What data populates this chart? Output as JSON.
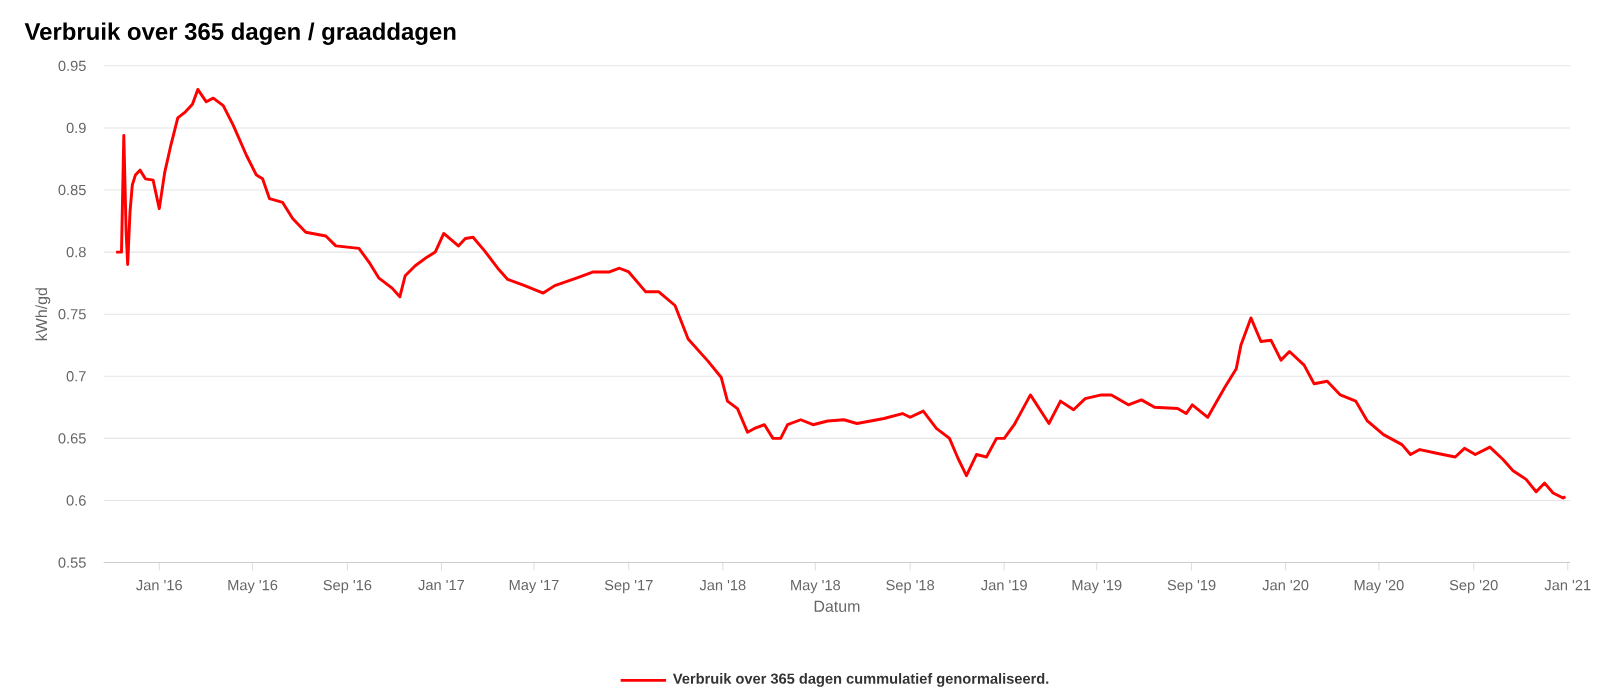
{
  "chart_data": {
    "type": "line",
    "title": "Verbruik over 365 dagen / graaddagen",
    "xlabel": "Datum",
    "ylabel": "kWh/gd",
    "x": [
      "2015-11-06",
      "2015-11-13",
      "2015-11-16",
      "2015-11-19",
      "2015-11-21",
      "2015-11-24",
      "2015-11-27",
      "2015-12-01",
      "2015-12-07",
      "2015-12-14",
      "2015-12-24",
      "2016-01-01",
      "2016-01-08",
      "2016-01-16",
      "2016-01-25",
      "2016-02-04",
      "2016-02-13",
      "2016-02-20",
      "2016-03-02",
      "2016-03-11",
      "2016-03-24",
      "2016-04-06",
      "2016-04-23",
      "2016-05-06",
      "2016-05-14",
      "2016-05-23",
      "2016-06-09",
      "2016-06-22",
      "2016-07-09",
      "2016-08-04",
      "2016-08-17",
      "2016-09-16",
      "2016-09-29",
      "2016-10-12",
      "2016-10-29",
      "2016-11-08",
      "2016-11-15",
      "2016-11-28",
      "2016-12-11",
      "2016-12-24",
      "2017-01-04",
      "2017-01-23",
      "2017-02-01",
      "2017-02-11",
      "2017-02-26",
      "2017-03-15",
      "2017-03-28",
      "2017-04-19",
      "2017-05-13",
      "2017-05-28",
      "2017-06-25",
      "2017-07-17",
      "2017-08-07",
      "2017-08-20",
      "2017-09-01",
      "2017-09-23",
      "2017-10-10",
      "2017-10-31",
      "2017-11-17",
      "2017-12-13",
      "2017-12-30",
      "2018-01-07",
      "2018-01-20",
      "2018-02-02",
      "2018-02-11",
      "2018-02-24",
      "2018-03-07",
      "2018-03-17",
      "2018-03-26",
      "2018-04-12",
      "2018-04-28",
      "2018-05-17",
      "2018-06-07",
      "2018-06-24",
      "2018-07-29",
      "2018-08-22",
      "2018-09-01",
      "2018-09-18",
      "2018-10-05",
      "2018-10-22",
      "2018-11-02",
      "2018-11-13",
      "2018-11-26",
      "2018-12-09",
      "2018-12-22",
      "2019-01-01",
      "2019-01-14",
      "2019-02-04",
      "2019-02-28",
      "2019-03-15",
      "2019-04-01",
      "2019-04-16",
      "2019-05-07",
      "2019-05-20",
      "2019-06-11",
      "2019-06-28",
      "2019-07-15",
      "2019-08-14",
      "2019-08-25",
      "2019-09-02",
      "2019-09-22",
      "2019-10-14",
      "2019-10-29",
      "2019-11-04",
      "2019-11-17",
      "2019-11-30",
      "2019-12-13",
      "2019-12-26",
      "2020-01-06",
      "2020-01-25",
      "2020-02-07",
      "2020-02-24",
      "2020-03-12",
      "2020-04-01",
      "2020-04-16",
      "2020-05-07",
      "2020-05-31",
      "2020-06-11",
      "2020-06-23",
      "2020-07-15",
      "2020-08-08",
      "2020-08-20",
      "2020-09-03",
      "2020-09-22",
      "2020-10-09",
      "2020-10-22",
      "2020-11-08",
      "2020-11-21",
      "2020-12-02",
      "2020-12-13",
      "2020-12-26",
      "2020-12-29"
    ],
    "series": [
      {
        "name": "Verbruik over 365 dagen cummulatief genormaliseerd.",
        "color": "#ff0000",
        "values": [
          0.8,
          0.8,
          0.894,
          0.816,
          0.79,
          0.832,
          0.854,
          0.862,
          0.866,
          0.859,
          0.858,
          0.835,
          0.864,
          0.886,
          0.908,
          0.913,
          0.919,
          0.931,
          0.921,
          0.924,
          0.918,
          0.902,
          0.878,
          0.862,
          0.859,
          0.843,
          0.84,
          0.827,
          0.816,
          0.813,
          0.805,
          0.803,
          0.792,
          0.779,
          0.771,
          0.764,
          0.781,
          0.789,
          0.795,
          0.8,
          0.815,
          0.805,
          0.811,
          0.812,
          0.801,
          0.787,
          0.778,
          0.773,
          0.767,
          0.773,
          0.779,
          0.784,
          0.784,
          0.787,
          0.784,
          0.768,
          0.768,
          0.757,
          0.73,
          0.712,
          0.699,
          0.68,
          0.674,
          0.655,
          0.658,
          0.661,
          0.65,
          0.65,
          0.661,
          0.665,
          0.661,
          0.664,
          0.665,
          0.662,
          0.666,
          0.67,
          0.667,
          0.672,
          0.658,
          0.65,
          0.634,
          0.62,
          0.637,
          0.635,
          0.65,
          0.65,
          0.661,
          0.685,
          0.662,
          0.68,
          0.673,
          0.682,
          0.685,
          0.685,
          0.677,
          0.681,
          0.675,
          0.674,
          0.67,
          0.677,
          0.667,
          0.691,
          0.706,
          0.725,
          0.747,
          0.728,
          0.729,
          0.713,
          0.72,
          0.709,
          0.694,
          0.696,
          0.685,
          0.68,
          0.664,
          0.653,
          0.645,
          0.637,
          0.641,
          0.638,
          0.635,
          0.642,
          0.637,
          0.643,
          0.633,
          0.624,
          0.617,
          0.607,
          0.614,
          0.606,
          0.602,
          0.603
        ]
      }
    ],
    "xlim": [
      "2015-10-21",
      "2021-01-04"
    ],
    "xticks": [
      {
        "value": "2016-01-01",
        "label": "Jan '16"
      },
      {
        "value": "2016-05-01",
        "label": "May '16"
      },
      {
        "value": "2016-09-01",
        "label": "Sep '16"
      },
      {
        "value": "2017-01-01",
        "label": "Jan '17"
      },
      {
        "value": "2017-05-01",
        "label": "May '17"
      },
      {
        "value": "2017-09-01",
        "label": "Sep '17"
      },
      {
        "value": "2018-01-01",
        "label": "Jan '18"
      },
      {
        "value": "2018-05-01",
        "label": "May '18"
      },
      {
        "value": "2018-09-01",
        "label": "Sep '18"
      },
      {
        "value": "2019-01-01",
        "label": "Jan '19"
      },
      {
        "value": "2019-05-01",
        "label": "May '19"
      },
      {
        "value": "2019-09-01",
        "label": "Sep '19"
      },
      {
        "value": "2020-01-01",
        "label": "Jan '20"
      },
      {
        "value": "2020-05-01",
        "label": "May '20"
      },
      {
        "value": "2020-09-01",
        "label": "Sep '20"
      },
      {
        "value": "2021-01-01",
        "label": "Jan '21"
      }
    ],
    "ylim": [
      0.55,
      0.95
    ],
    "yticks": [
      0.55,
      0.6,
      0.65,
      0.7,
      0.75,
      0.8,
      0.85,
      0.9,
      0.95
    ],
    "grid": "y",
    "legend": "bottom",
    "marker": "none",
    "line_style": "solid"
  }
}
